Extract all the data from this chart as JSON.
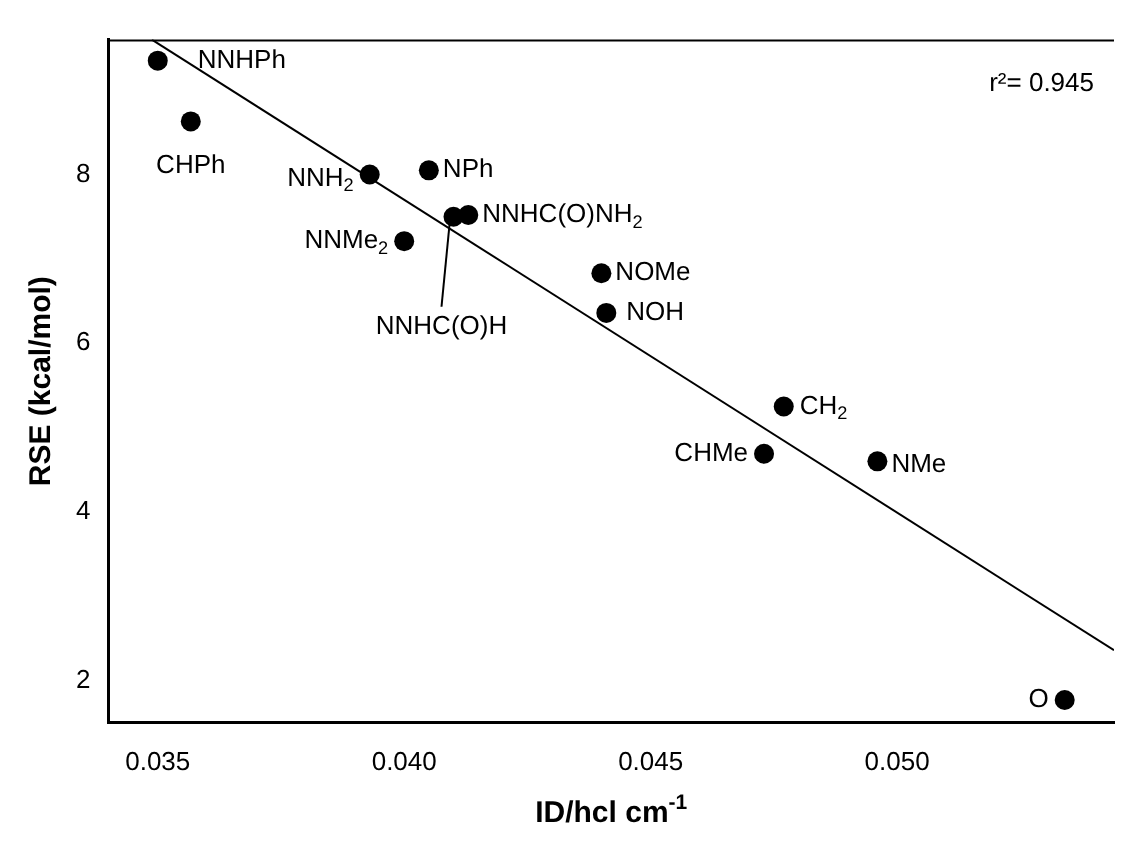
{
  "chart_data": {
    "type": "scatter",
    "xlabel": "ID/hcl cm$^{-1}$",
    "ylabel": "RSE (kcal/mol)",
    "xlim": [
      0.034,
      0.0544
    ],
    "ylim": [
      1.5,
      9.6
    ],
    "xticks": [
      {
        "value": 0.035,
        "label": "0.035"
      },
      {
        "value": 0.04,
        "label": "0.040"
      },
      {
        "value": 0.045,
        "label": "0.045"
      },
      {
        "value": 0.05,
        "label": "0.050"
      }
    ],
    "yticks": [
      2,
      4,
      6,
      8
    ],
    "grid": false,
    "legend": false,
    "series": [
      {
        "type": "scatter",
        "color": "#000000",
        "marker": "circle",
        "x": [
          0.035,
          0.03567,
          0.0393,
          0.0405,
          0.041,
          0.0413,
          0.04,
          0.044,
          0.0441,
          0.0477,
          0.0473,
          0.0496,
          0.0534
        ],
        "values": [
          9.35,
          8.63,
          8.0,
          8.05,
          7.5,
          7.52,
          7.21,
          6.83,
          6.36,
          5.25,
          4.69,
          4.6,
          1.77
        ]
      },
      {
        "type": "line",
        "color": "#000000",
        "marker": "none",
        "line_style": "solid",
        "x": [
          0.03488,
          0.0544
        ],
        "values": [
          9.6,
          2.36
        ]
      }
    ],
    "annotations": [
      {
        "text": "NNHPh",
        "x": 0.035,
        "y": 9.35
      },
      {
        "text": "CHPh",
        "x": 0.03567,
        "y": 8.63
      },
      {
        "text": "NNH$_{2}$",
        "x": 0.0393,
        "y": 8.0
      },
      {
        "text": "NPh",
        "x": 0.0405,
        "y": 8.05
      },
      {
        "text": "NNHC(O)H",
        "x": 0.041,
        "y": 7.5
      },
      {
        "text": "NNHC(O)NH$_{2}$",
        "x": 0.0413,
        "y": 7.52
      },
      {
        "text": "NNMe$_{2}$",
        "x": 0.04,
        "y": 7.21
      },
      {
        "text": "NOMe",
        "x": 0.044,
        "y": 6.83
      },
      {
        "text": "NOH",
        "x": 0.0441,
        "y": 6.36
      },
      {
        "text": "CH$_{2}$",
        "x": 0.0477,
        "y": 5.25
      },
      {
        "text": "CHMe",
        "x": 0.0473,
        "y": 4.69
      },
      {
        "text": "NMe",
        "x": 0.0496,
        "y": 4.6
      },
      {
        "text": "O",
        "x": 0.0534,
        "y": 1.77
      },
      "r²= 0.945"
    ]
  }
}
